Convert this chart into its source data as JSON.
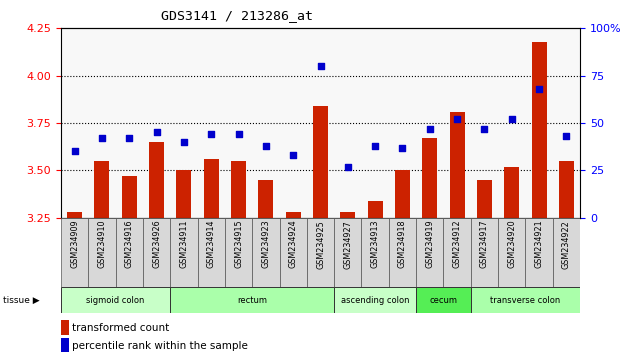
{
  "title": "GDS3141 / 213286_at",
  "samples": [
    "GSM234909",
    "GSM234910",
    "GSM234916",
    "GSM234926",
    "GSM234911",
    "GSM234914",
    "GSM234915",
    "GSM234923",
    "GSM234924",
    "GSM234925",
    "GSM234927",
    "GSM234913",
    "GSM234918",
    "GSM234919",
    "GSM234912",
    "GSM234917",
    "GSM234920",
    "GSM234921",
    "GSM234922"
  ],
  "red_values": [
    3.28,
    3.55,
    3.47,
    3.65,
    3.5,
    3.56,
    3.55,
    3.45,
    3.28,
    3.84,
    3.28,
    3.34,
    3.5,
    3.67,
    3.81,
    3.45,
    3.52,
    4.18,
    3.55
  ],
  "blue_values": [
    35,
    42,
    42,
    45,
    40,
    44,
    44,
    38,
    33,
    80,
    27,
    38,
    37,
    47,
    52,
    47,
    52,
    68,
    43
  ],
  "tissues": [
    {
      "label": "sigmoid colon",
      "start": 0,
      "end": 4
    },
    {
      "label": "rectum",
      "start": 4,
      "end": 10
    },
    {
      "label": "ascending colon",
      "start": 10,
      "end": 13
    },
    {
      "label": "cecum",
      "start": 13,
      "end": 15
    },
    {
      "label": "transverse colon",
      "start": 15,
      "end": 19
    }
  ],
  "tissue_colors": {
    "sigmoid colon": "#c8ffc8",
    "rectum": "#aaffaa",
    "ascending colon": "#c8ffc8",
    "cecum": "#55ee55",
    "transverse colon": "#aaffaa"
  },
  "ylim_left": [
    3.25,
    4.25
  ],
  "ylim_right": [
    0,
    100
  ],
  "yticks_left": [
    3.25,
    3.5,
    3.75,
    4.0,
    4.25
  ],
  "yticks_right": [
    0,
    25,
    50,
    75,
    100
  ],
  "ytick_labels_right": [
    "0",
    "25",
    "50",
    "75",
    "100%"
  ],
  "bar_color": "#cc2200",
  "dot_color": "#0000cc",
  "bar_bottom": 3.25,
  "grid_lines": [
    3.5,
    3.75,
    4.0
  ],
  "plot_bg": "#f8f8f8"
}
